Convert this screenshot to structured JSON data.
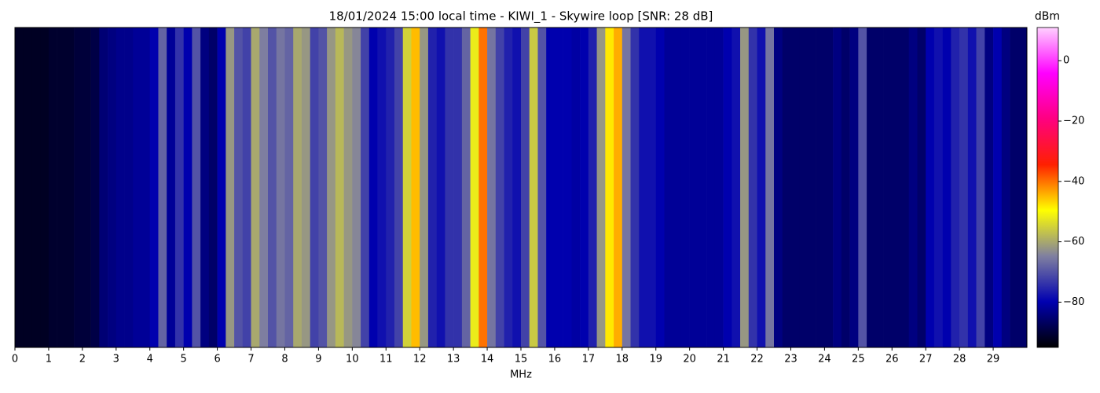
{
  "chart_data": {
    "type": "spectrogram",
    "title": "18/01/2024 15:00 local time - KIWI_1 - Skywire loop [SNR: 28 dB]",
    "xlabel": "MHz",
    "colorbar_label": "dBm",
    "xlim": [
      0,
      30
    ],
    "xticks": [
      0,
      1,
      2,
      3,
      4,
      5,
      6,
      7,
      8,
      9,
      10,
      11,
      12,
      13,
      14,
      15,
      16,
      17,
      18,
      19,
      20,
      21,
      22,
      23,
      24,
      25,
      26,
      27,
      28,
      29
    ],
    "clim": [
      -95,
      11
    ],
    "cticks": [
      {
        "value": -80,
        "label": "−80"
      },
      {
        "value": -60,
        "label": "−60"
      },
      {
        "value": -40,
        "label": "−40"
      },
      {
        "value": -20,
        "label": "−20"
      },
      0
    ],
    "colorscale": [
      "#000000",
      "#0000b0",
      "#8080a0",
      "#ffff00",
      "#ff2000",
      "#ff0080",
      "#ff00ff",
      "#ffd0ff"
    ],
    "x": [
      0,
      0.25,
      0.5,
      0.75,
      1,
      1.25,
      1.5,
      1.75,
      2,
      2.25,
      2.5,
      2.75,
      3,
      3.25,
      3.5,
      3.75,
      4,
      4.25,
      4.5,
      4.75,
      5,
      5.25,
      5.5,
      5.75,
      6,
      6.25,
      6.5,
      6.75,
      7,
      7.25,
      7.5,
      7.75,
      8,
      8.25,
      8.5,
      8.75,
      9,
      9.25,
      9.5,
      9.75,
      10,
      10.25,
      10.5,
      10.75,
      11,
      11.25,
      11.5,
      11.75,
      12,
      12.25,
      12.5,
      12.75,
      13,
      13.25,
      13.5,
      13.75,
      14,
      14.25,
      14.5,
      14.75,
      15,
      15.25,
      15.5,
      15.75,
      16,
      16.25,
      16.5,
      16.75,
      17,
      17.25,
      17.5,
      17.75,
      18,
      18.25,
      18.5,
      18.75,
      19,
      19.25,
      19.5,
      19.75,
      20,
      20.25,
      20.5,
      20.75,
      21,
      21.25,
      21.5,
      21.75,
      22,
      22.25,
      22.5,
      22.75,
      23,
      23.25,
      23.5,
      23.75,
      24,
      24.25,
      24.5,
      24.75,
      25,
      25.25,
      25.5,
      25.75,
      26,
      26.25,
      26.5,
      26.75,
      27,
      27.25,
      27.5,
      27.75,
      28,
      28.25,
      28.5,
      28.75,
      29,
      29.25,
      29.5,
      29.75
    ],
    "values": [
      -92,
      -92,
      -92,
      -92,
      -91,
      -91,
      -91,
      -90,
      -90,
      -89,
      -85,
      -84,
      -83,
      -83,
      -82,
      -82,
      -80,
      -68,
      -82,
      -74,
      -80,
      -70,
      -84,
      -86,
      -80,
      -62,
      -70,
      -72,
      -60,
      -65,
      -70,
      -66,
      -68,
      -60,
      -62,
      -72,
      -70,
      -62,
      -58,
      -62,
      -64,
      -72,
      -80,
      -78,
      -76,
      -72,
      -55,
      -45,
      -62,
      -76,
      -78,
      -74,
      -74,
      -68,
      -52,
      -40,
      -66,
      -72,
      -76,
      -78,
      -72,
      -56,
      -70,
      -80,
      -80,
      -80,
      -81,
      -80,
      -76,
      -62,
      -48,
      -44,
      -66,
      -74,
      -78,
      -78,
      -80,
      -82,
      -82,
      -82,
      -82,
      -82,
      -82,
      -82,
      -80,
      -78,
      -62,
      -74,
      -78,
      -66,
      -84,
      -86,
      -86,
      -86,
      -86,
      -86,
      -86,
      -84,
      -86,
      -84,
      -70,
      -86,
      -86,
      -86,
      -86,
      -86,
      -84,
      -86,
      -80,
      -78,
      -80,
      -76,
      -74,
      -78,
      -72,
      -84,
      -80,
      -84,
      -86,
      -86
    ]
  }
}
